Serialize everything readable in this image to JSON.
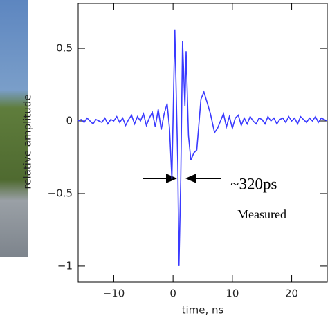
{
  "chart_data": {
    "type": "line",
    "xlabel": "time, ns",
    "ylabel": "relative amplitude",
    "annotations": [
      "~320ps",
      "Measured"
    ],
    "xlim": [
      -16,
      26
    ],
    "ylim": [
      -1.11,
      0.81
    ],
    "xticks": [
      {
        "value": -10,
        "label": "−10"
      },
      0,
      10,
      20
    ],
    "yticks": [
      {
        "value": -1,
        "label": "−1"
      },
      {
        "value": -0.5,
        "label": "−0.5"
      },
      0,
      0.5
    ],
    "color": "#3a3aff",
    "x": [
      -16,
      -15.5,
      -15,
      -14.5,
      -14,
      -13.5,
      -13,
      -12.5,
      -12,
      -11.5,
      -11,
      -10.5,
      -10,
      -9.5,
      -9,
      -8.5,
      -8,
      -7.5,
      -7,
      -6.5,
      -6,
      -5.5,
      -5,
      -4.5,
      -4,
      -3.5,
      -3,
      -2.5,
      -2,
      -1.5,
      -1,
      -0.6,
      -0.2,
      0.3,
      0.8,
      1.0,
      1.3,
      1.6,
      2.0,
      2.2,
      2.6,
      3.0,
      3.5,
      4.0,
      4.3,
      4.7,
      5.2,
      5.8,
      6.3,
      7.0,
      7.5,
      8,
      8.5,
      9,
      9.5,
      10,
      10.5,
      11,
      11.5,
      12,
      12.5,
      13,
      13.5,
      14,
      14.5,
      15,
      15.5,
      16,
      16.5,
      17,
      17.5,
      18,
      18.5,
      19,
      19.5,
      20,
      20.5,
      21,
      21.5,
      22,
      22.5,
      23,
      23.5,
      24,
      24.5,
      25,
      25.5,
      26
    ],
    "values": [
      0.0,
      0.01,
      -0.01,
      0.02,
      0.0,
      -0.02,
      0.01,
      0.0,
      -0.01,
      0.02,
      -0.02,
      0.01,
      0.0,
      0.03,
      -0.01,
      0.02,
      -0.03,
      0.01,
      0.04,
      -0.02,
      0.03,
      0.0,
      0.05,
      -0.03,
      0.02,
      0.06,
      -0.04,
      0.08,
      -0.06,
      0.05,
      0.12,
      -0.05,
      -0.4,
      0.63,
      -0.3,
      -1.0,
      -0.4,
      0.55,
      0.1,
      0.48,
      -0.1,
      -0.27,
      -0.22,
      -0.2,
      -0.05,
      0.15,
      0.2,
      0.12,
      0.05,
      -0.08,
      -0.05,
      0.0,
      0.05,
      -0.04,
      0.03,
      -0.05,
      0.02,
      0.04,
      -0.03,
      0.02,
      -0.02,
      0.03,
      0.0,
      -0.02,
      0.02,
      0.01,
      -0.02,
      0.03,
      0.0,
      0.02,
      -0.02,
      0.01,
      0.02,
      -0.01,
      0.03,
      0.0,
      0.02,
      -0.02,
      0.03,
      0.01,
      -0.01,
      0.02,
      0.0,
      0.03,
      -0.01,
      0.02,
      0.01,
      0.0
    ]
  }
}
